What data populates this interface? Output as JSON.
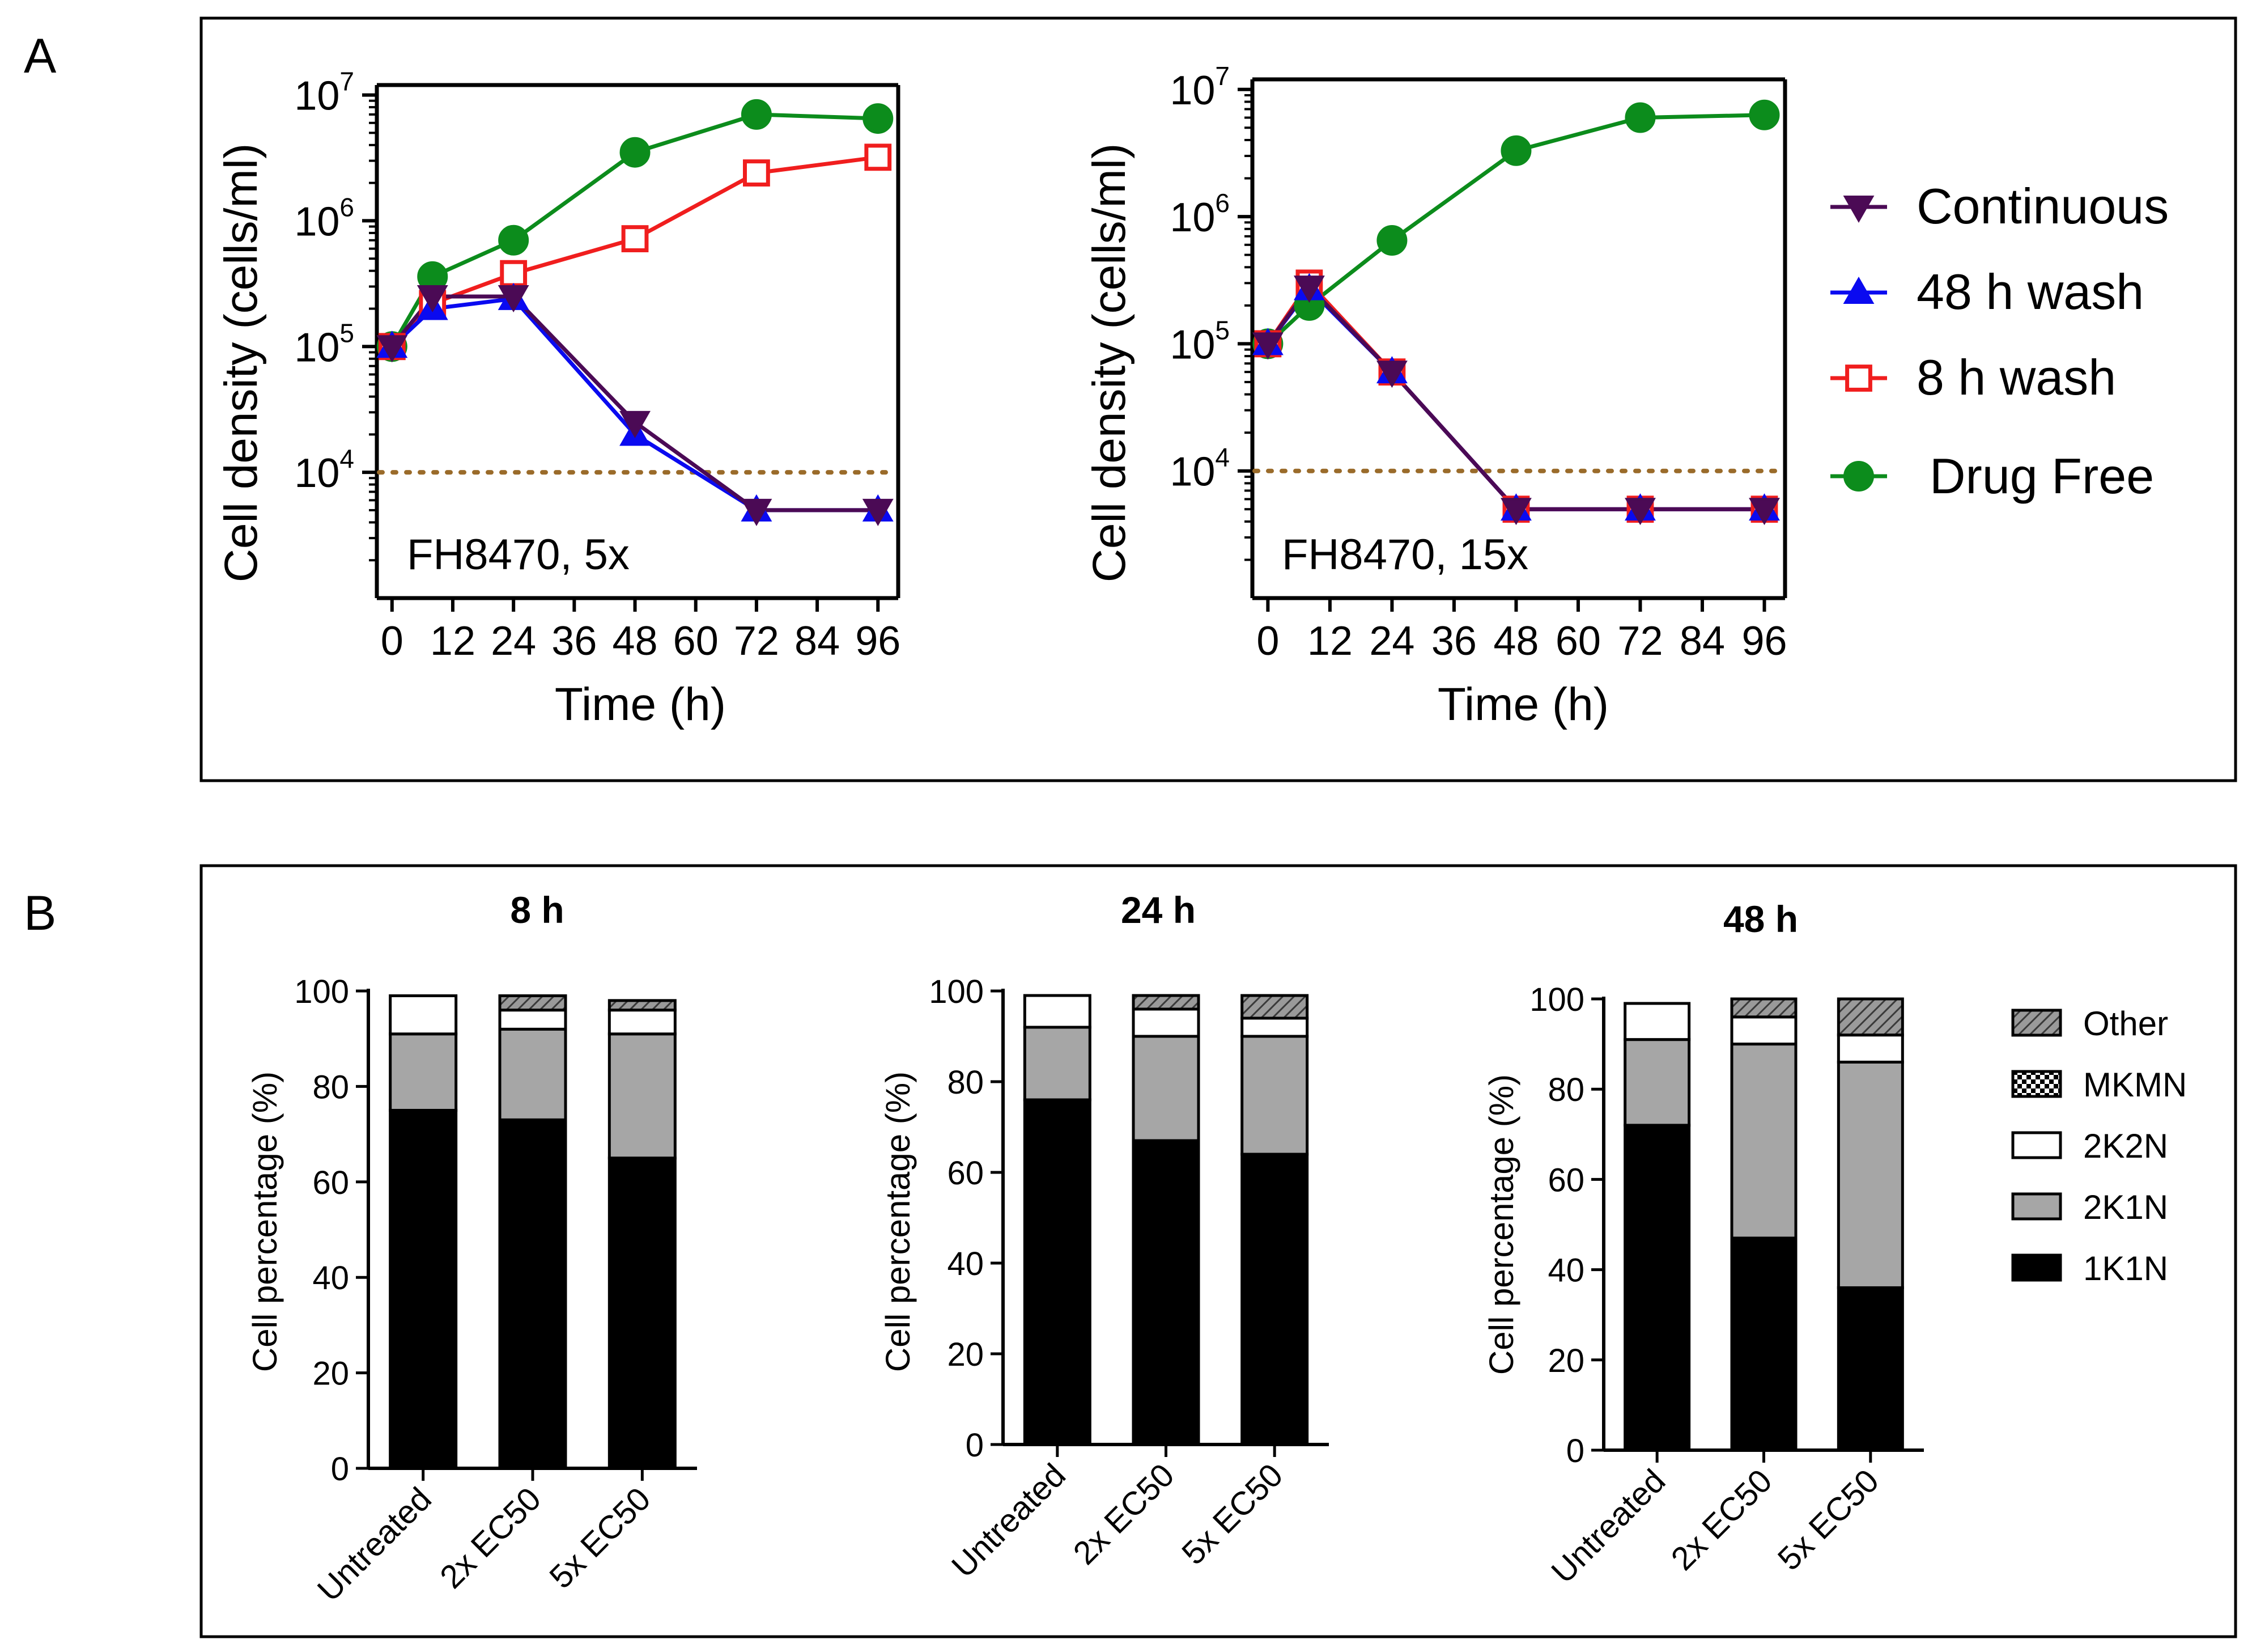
{
  "panel_labels": [
    "A",
    "B"
  ],
  "legend_A": [
    {
      "label": "Continuous",
      "color": "#4b0a55",
      "marker": "triangle-down",
      "fill": "filled"
    },
    {
      "label": "48 h wash",
      "color": "#0a0af0",
      "marker": "triangle-up",
      "fill": "filled"
    },
    {
      "label": "8 h wash",
      "color": "#f01e1e",
      "marker": "square",
      "fill": "open"
    },
    {
      "label": "Drug Free",
      "color": "#0c8c1c",
      "marker": "circle",
      "fill": "filled"
    }
  ],
  "legend_B": [
    {
      "label": "Other",
      "fill": "hatched",
      "color": "#777777"
    },
    {
      "label": "MKMN",
      "fill": "checkered",
      "color": "#000000"
    },
    {
      "label": "2K2N",
      "fill": "white",
      "color": "#ffffff"
    },
    {
      "label": "2K1N",
      "fill": "gray",
      "color": "#a6a6a6"
    },
    {
      "label": "1K1N",
      "fill": "black",
      "color": "#000000"
    }
  ],
  "chart_data": [
    {
      "type": "line",
      "annotation": "FH8470, 5x",
      "xlabel": "Time (h)",
      "ylabel": "Cell density (cells/ml)",
      "y_scale": "log",
      "ylim": [
        1000,
        12000000
      ],
      "xlim": [
        -3,
        100
      ],
      "x_ticks": [
        0,
        12,
        24,
        36,
        48,
        60,
        72,
        84,
        96
      ],
      "y_ticks": [
        {
          "value": 10000,
          "base": "10",
          "exp": "4"
        },
        {
          "value": 100000,
          "base": "10",
          "exp": "5"
        },
        {
          "value": 1000000,
          "base": "10",
          "exp": "6"
        },
        {
          "value": 10000000,
          "base": "10",
          "exp": "7"
        }
      ],
      "reference_line": {
        "y": 10000,
        "style": "dotted",
        "color": "#9a6b2a"
      },
      "series": [
        {
          "name": "Continuous",
          "x": [
            0,
            8,
            24,
            48,
            72,
            96
          ],
          "y": [
            100000,
            250000,
            250000,
            25000,
            5000,
            5000
          ]
        },
        {
          "name": "48 h wash",
          "x": [
            0,
            8,
            24,
            48,
            72,
            96
          ],
          "y": [
            100000,
            200000,
            240000,
            20000,
            5000,
            5000
          ]
        },
        {
          "name": "8 h wash",
          "x": [
            0,
            8,
            24,
            48,
            72,
            96
          ],
          "y": [
            100000,
            220000,
            380000,
            720000,
            2400000,
            3200000
          ]
        },
        {
          "name": "Drug Free",
          "x": [
            0,
            8,
            24,
            48,
            72,
            96
          ],
          "y": [
            100000,
            360000,
            700000,
            3500000,
            7000000,
            6500000
          ]
        }
      ]
    },
    {
      "type": "line",
      "annotation": "FH8470, 15x",
      "xlabel": "Time (h)",
      "ylabel": "Cell density (cells/ml)",
      "y_scale": "log",
      "ylim": [
        1000,
        12000000
      ],
      "xlim": [
        -3,
        100
      ],
      "x_ticks": [
        0,
        12,
        24,
        36,
        48,
        60,
        72,
        84,
        96
      ],
      "y_ticks": [
        {
          "value": 10000,
          "base": "10",
          "exp": "4"
        },
        {
          "value": 100000,
          "base": "10",
          "exp": "5"
        },
        {
          "value": 1000000,
          "base": "10",
          "exp": "6"
        },
        {
          "value": 10000000,
          "base": "10",
          "exp": "7"
        }
      ],
      "reference_line": {
        "y": 10000,
        "style": "dotted",
        "color": "#9a6b2a"
      },
      "series": [
        {
          "name": "Continuous",
          "x": [
            0,
            8,
            24,
            48,
            72,
            96
          ],
          "y": [
            100000,
            280000,
            60000,
            5000,
            5000,
            5000
          ]
        },
        {
          "name": "48 h wash",
          "x": [
            0,
            8,
            24,
            48,
            72,
            96
          ],
          "y": [
            100000,
            270000,
            60000,
            5000,
            5000,
            5000
          ]
        },
        {
          "name": "8 h wash",
          "x": [
            0,
            8,
            24,
            48,
            72,
            96
          ],
          "y": [
            100000,
            300000,
            60000,
            5000,
            5000,
            5000
          ]
        },
        {
          "name": "Drug Free",
          "x": [
            0,
            8,
            24,
            48,
            72,
            96
          ],
          "y": [
            100000,
            200000,
            650000,
            3300000,
            6000000,
            6300000
          ]
        }
      ]
    },
    {
      "type": "bar",
      "stacked": true,
      "title": "8 h",
      "ylabel": "Cell percentage (%)",
      "ylim": [
        0,
        100
      ],
      "y_ticks": [
        0,
        20,
        40,
        60,
        80,
        100
      ],
      "categories": [
        "Untreated",
        "2x EC50",
        "5x EC50"
      ],
      "series": [
        {
          "name": "1K1N",
          "values": [
            75,
            73,
            65
          ]
        },
        {
          "name": "2K1N",
          "values": [
            16,
            19,
            26
          ]
        },
        {
          "name": "2K2N",
          "values": [
            8,
            4,
            5
          ]
        },
        {
          "name": "MKMN",
          "values": [
            0,
            0,
            0
          ]
        },
        {
          "name": "Other",
          "values": [
            0,
            3,
            2
          ]
        }
      ]
    },
    {
      "type": "bar",
      "stacked": true,
      "title": "24 h",
      "ylabel": "Cell percentage (%)",
      "ylim": [
        0,
        100
      ],
      "y_ticks": [
        0,
        20,
        40,
        60,
        80,
        100
      ],
      "categories": [
        "Untreated",
        "2x EC50",
        "5x EC50"
      ],
      "series": [
        {
          "name": "1K1N",
          "values": [
            76,
            67,
            64
          ]
        },
        {
          "name": "2K1N",
          "values": [
            16,
            23,
            26
          ]
        },
        {
          "name": "2K2N",
          "values": [
            7,
            6,
            4
          ]
        },
        {
          "name": "MKMN",
          "values": [
            0,
            0,
            0
          ]
        },
        {
          "name": "Other",
          "values": [
            0,
            3,
            5
          ]
        }
      ]
    },
    {
      "type": "bar",
      "stacked": true,
      "title": "48 h",
      "ylabel": "Cell percentage (%)",
      "ylim": [
        0,
        100
      ],
      "y_ticks": [
        0,
        20,
        40,
        60,
        80,
        100
      ],
      "categories": [
        "Untreated",
        "2x EC50",
        "5x EC50"
      ],
      "series": [
        {
          "name": "1K1N",
          "values": [
            72,
            47,
            36
          ]
        },
        {
          "name": "2K1N",
          "values": [
            19,
            43,
            50
          ]
        },
        {
          "name": "2K2N",
          "values": [
            8,
            6,
            6
          ]
        },
        {
          "name": "MKMN",
          "values": [
            0,
            0,
            0
          ]
        },
        {
          "name": "Other",
          "values": [
            0,
            4,
            8
          ]
        }
      ]
    }
  ]
}
